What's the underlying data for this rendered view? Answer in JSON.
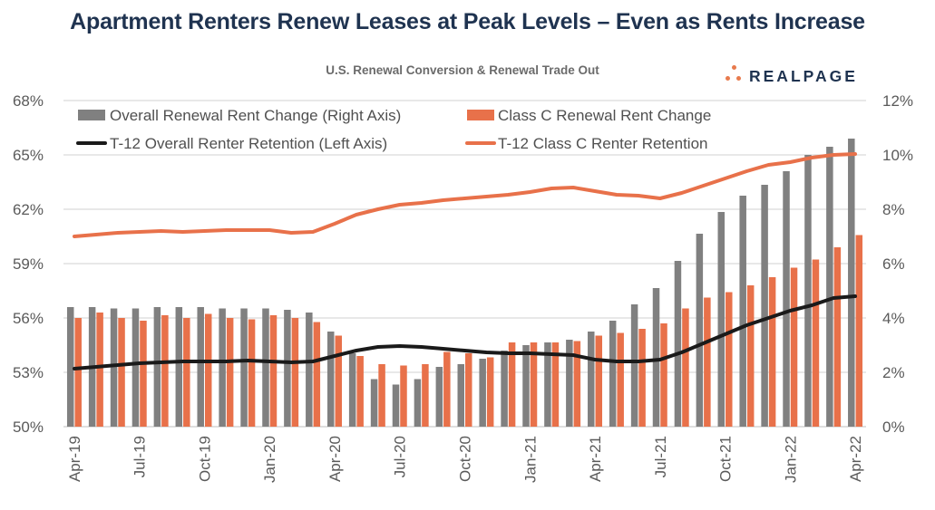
{
  "header": {
    "title": "Apartment Renters Renew Leases at Peak Levels – Even as Rents Increase",
    "subtitle": "U.S. Renewal Conversion & Renewal Trade Out",
    "logo_text": "REALPAGE"
  },
  "colors": {
    "title": "#1f3350",
    "gray_bar": "#808080",
    "orange": "#e8714a",
    "black_line": "#1a1a1a",
    "grid": "#d0d0d0"
  },
  "chart_data": {
    "type": "bar+line",
    "title": "U.S. Renewal Conversion & Renewal Trade Out",
    "left_axis": {
      "min": 50,
      "max": 68,
      "ticks": [
        "50%",
        "53%",
        "56%",
        "59%",
        "62%",
        "65%",
        "68%"
      ]
    },
    "right_axis": {
      "min": 0,
      "max": 12,
      "ticks": [
        "0%",
        "2%",
        "4%",
        "6%",
        "8%",
        "10%",
        "12%"
      ]
    },
    "x_tick_labels": [
      "Apr-19",
      "Jul-19",
      "Oct-19",
      "Jan-20",
      "Apr-20",
      "Jul-20",
      "Oct-20",
      "Jan-21",
      "Apr-21",
      "Jul-21",
      "Oct-21",
      "Jan-22",
      "Apr-22"
    ],
    "categories": [
      "Apr-19",
      "May-19",
      "Jun-19",
      "Jul-19",
      "Aug-19",
      "Sep-19",
      "Oct-19",
      "Nov-19",
      "Dec-19",
      "Jan-20",
      "Feb-20",
      "Mar-20",
      "Apr-20",
      "May-20",
      "Jun-20",
      "Jul-20",
      "Aug-20",
      "Sep-20",
      "Oct-20",
      "Nov-20",
      "Dec-20",
      "Jan-21",
      "Feb-21",
      "Mar-21",
      "Apr-21",
      "May-21",
      "Jun-21",
      "Jul-21",
      "Aug-21",
      "Sep-21",
      "Oct-21",
      "Nov-21",
      "Dec-21",
      "Jan-22",
      "Feb-22",
      "Mar-22",
      "Apr-22"
    ],
    "series": [
      {
        "name": "Overall Renewal Rent Change (Right Axis)",
        "type": "bar",
        "axis": "right",
        "color": "#808080",
        "values": [
          4.4,
          4.4,
          4.35,
          4.35,
          4.4,
          4.4,
          4.4,
          4.35,
          4.35,
          4.35,
          4.3,
          4.2,
          3.5,
          2.7,
          1.75,
          1.55,
          1.75,
          2.2,
          2.3,
          2.5,
          2.8,
          3.0,
          3.1,
          3.2,
          3.5,
          3.9,
          4.5,
          5.1,
          6.1,
          7.1,
          7.9,
          8.5,
          8.9,
          9.4,
          10.0,
          10.3,
          10.6
        ]
      },
      {
        "name": "Class C Renewal Rent Change",
        "type": "bar",
        "axis": "right",
        "color": "#e8714a",
        "values": [
          4.0,
          4.2,
          4.0,
          3.9,
          4.1,
          4.0,
          4.15,
          4.0,
          3.95,
          4.1,
          4.0,
          3.85,
          3.35,
          2.6,
          2.3,
          2.25,
          2.3,
          2.75,
          2.7,
          2.55,
          3.1,
          3.1,
          3.1,
          3.15,
          3.35,
          3.45,
          3.6,
          3.8,
          4.35,
          4.75,
          4.95,
          5.2,
          5.5,
          5.85,
          6.15,
          6.6,
          7.05
        ]
      },
      {
        "name": "T-12 Overall Renter Retention (Left Axis)",
        "type": "line",
        "axis": "left",
        "color": "#1a1a1a",
        "values": [
          53.2,
          53.3,
          53.4,
          53.5,
          53.55,
          53.6,
          53.6,
          53.6,
          53.65,
          53.6,
          53.55,
          53.6,
          53.9,
          54.2,
          54.4,
          54.45,
          54.4,
          54.3,
          54.2,
          54.1,
          54.05,
          54.05,
          54.0,
          53.95,
          53.7,
          53.6,
          53.6,
          53.7,
          54.1,
          54.6,
          55.1,
          55.6,
          56.0,
          56.4,
          56.7,
          57.1,
          57.2
        ]
      },
      {
        "name": "T-12 Class C Renter Retention",
        "type": "line",
        "axis": "left",
        "color": "#e8714a",
        "values": [
          60.5,
          60.6,
          60.7,
          60.75,
          60.8,
          60.75,
          60.8,
          60.85,
          60.85,
          60.85,
          60.7,
          60.75,
          61.2,
          61.7,
          62.0,
          62.25,
          62.35,
          62.5,
          62.6,
          62.7,
          62.8,
          62.95,
          63.15,
          63.2,
          63.0,
          62.8,
          62.75,
          62.6,
          62.9,
          63.3,
          63.7,
          64.1,
          64.45,
          64.6,
          64.85,
          65.0,
          65.05
        ]
      }
    ]
  }
}
